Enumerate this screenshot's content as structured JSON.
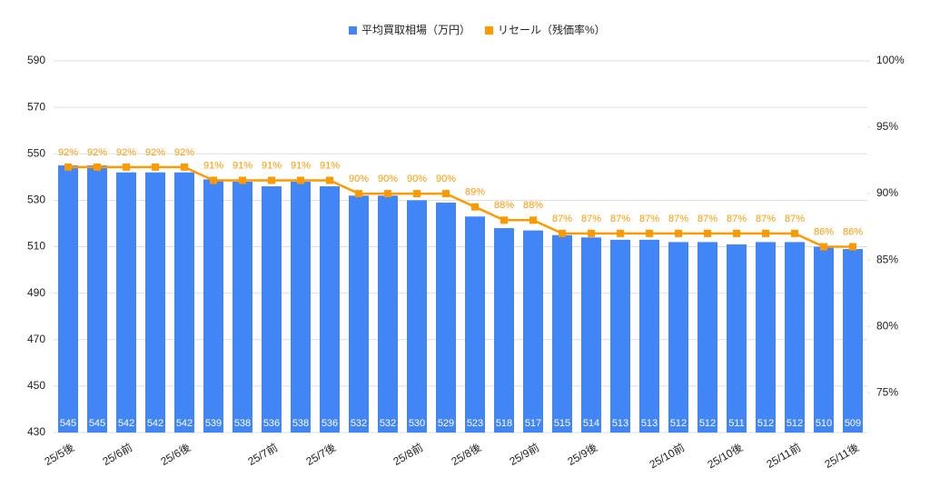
{
  "chart_data": {
    "type": "bar-line",
    "categories": [
      "25/5後",
      null,
      "25/6前",
      null,
      "25/6後",
      null,
      null,
      "25/7前",
      null,
      "25/7後",
      null,
      null,
      "25/8前",
      null,
      "25/8後",
      null,
      "25/9前",
      null,
      "25/9後",
      null,
      null,
      "25/10前",
      null,
      "25/10後",
      null,
      "25/11前",
      null,
      "25/11後"
    ],
    "series": [
      {
        "name": "平均買取相場（万円）",
        "color": "#4285f4",
        "type": "bar",
        "values": [
          545,
          545,
          542,
          542,
          542,
          539,
          538,
          536,
          538,
          536,
          532,
          532,
          530,
          529,
          523,
          518,
          517,
          515,
          514,
          513,
          513,
          512,
          512,
          511,
          512,
          512,
          510,
          509
        ]
      },
      {
        "name": "リセール（残価率%）",
        "color": "#ff9900",
        "type": "line",
        "axis": "y2",
        "values": [
          92,
          92,
          92,
          92,
          92,
          91,
          91,
          91,
          91,
          91,
          90,
          90,
          90,
          90,
          89,
          88,
          88,
          87,
          87,
          87,
          87,
          87,
          87,
          87,
          87,
          87,
          86,
          86
        ],
        "value_labels": [
          "92%",
          "92%",
          "92%",
          "92%",
          "92%",
          "91%",
          "91%",
          "91%",
          "91%",
          "91%",
          "90%",
          "90%",
          "90%",
          "90%",
          "89%",
          "88%",
          "88%",
          "87%",
          "87%",
          "87%",
          "87%",
          "87%",
          "87%",
          "87%",
          "87%",
          "87%",
          "86%",
          "86%"
        ]
      }
    ],
    "ylim": [
      430,
      590
    ],
    "yticks": [
      430,
      450,
      470,
      490,
      510,
      530,
      550,
      570,
      590
    ],
    "y2lim": [
      72,
      100
    ],
    "y2ticks": [
      {
        "value": 75,
        "label": "75%"
      },
      {
        "value": 80,
        "label": "80%"
      },
      {
        "value": 85,
        "label": "85%"
      },
      {
        "value": 90,
        "label": "90%"
      },
      {
        "value": 95,
        "label": "95%"
      },
      {
        "value": 100,
        "label": "100%"
      }
    ],
    "grid": true,
    "legend": "top"
  }
}
